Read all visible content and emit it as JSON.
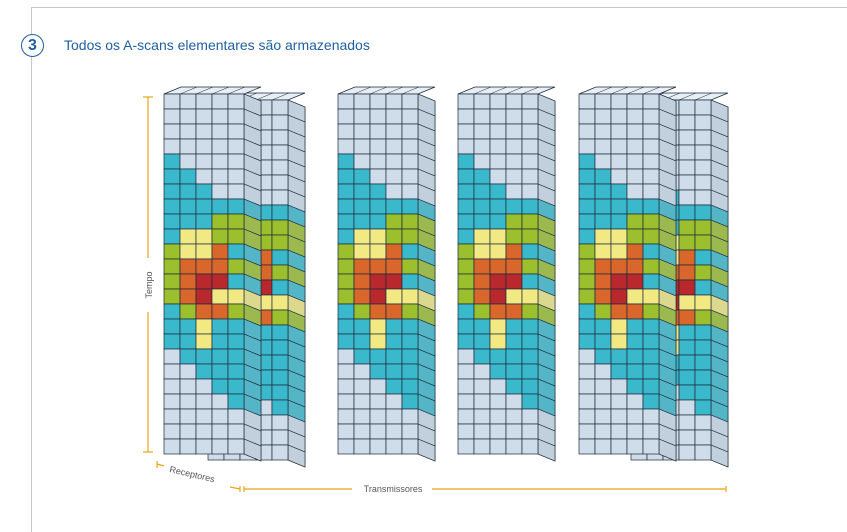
{
  "header": {
    "step_number": "3",
    "title": "Todos os A-scans elementares são armazenados"
  },
  "axes": {
    "time_label": "Tempo",
    "receivers_label": "Receptores",
    "transmitters_label": "Transmissores"
  },
  "colors": {
    "accent": "#1f5fa4",
    "axis": "#e8a51c",
    "empty_cell": "#cfdcea",
    "cyan": "#3bb9cc",
    "green": "#9bbf2d",
    "yellow": "#f2e982",
    "orange": "#d9662a",
    "red": "#b8282c",
    "grid_line": "#1b2a3a",
    "side_dark": "#9aa7b5",
    "top_light": "#e7eef6"
  },
  "slab_pattern": [
    "00000",
    "00000",
    "00000",
    "00000",
    "10000",
    "11000",
    "11100",
    "11111",
    "11122",
    "13322",
    "23341",
    "24442",
    "24551",
    "24533",
    "12442",
    "11311",
    "11311",
    "01111",
    "00111",
    "00011",
    "00001",
    "00000",
    "00000",
    "00000"
  ]
}
